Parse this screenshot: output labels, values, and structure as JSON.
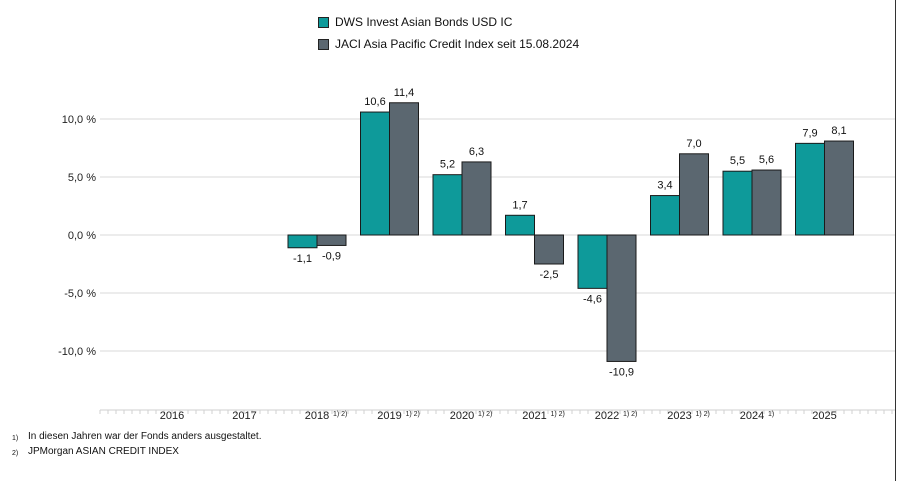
{
  "chart_data": {
    "type": "bar",
    "categories": [
      "2016",
      "2017",
      "2018",
      "2019",
      "2020",
      "2021",
      "2022",
      "2023",
      "2024",
      "2025"
    ],
    "category_superscripts": [
      "",
      "",
      "1) 2)",
      "1) 2)",
      "1) 2)",
      "1) 2)",
      "1) 2)",
      "1) 2)",
      "1)",
      ""
    ],
    "series": [
      {
        "name": "DWS Invest Asian Bonds USD IC",
        "values": [
          null,
          null,
          -1.1,
          10.6,
          5.2,
          1.7,
          -4.6,
          3.4,
          5.5,
          7.9
        ],
        "labels": [
          "",
          "",
          "-1,1",
          "10,6",
          "5,2",
          "1,7",
          "-4,6",
          "3,4",
          "5,5",
          "7,9"
        ],
        "color": "#0E9A9A"
      },
      {
        "name": "JACI Asia Pacific Credit Index seit 15.08.2024",
        "values": [
          null,
          null,
          -0.9,
          11.4,
          6.3,
          -2.5,
          -10.9,
          7.0,
          5.6,
          8.1
        ],
        "labels": [
          "",
          "",
          "-0,9",
          "11,4",
          "6,3",
          "-2,5",
          "-10,9",
          "7,0",
          "5,6",
          "8,1"
        ],
        "color": "#5B6770"
      }
    ],
    "y_ticks": [
      10,
      5,
      0,
      -5,
      -10
    ],
    "y_tick_labels": [
      "10,0 %",
      "5,0 %",
      "0,0 %",
      "-5,0 %",
      "-10,0 %"
    ],
    "ylim": [
      -13.5,
      13.5
    ],
    "grid": true,
    "legend_position": "top-center"
  },
  "legend": {
    "item1": "DWS Invest Asian Bonds USD IC",
    "item2": "JACI Asia Pacific Credit Index seit 15.08.2024"
  },
  "footnotes": [
    {
      "mark": "1)",
      "text": "In diesen Jahren war der Fonds anders ausgestaltet."
    },
    {
      "mark": "2)",
      "text": "JPMorgan ASIAN CREDIT INDEX"
    }
  ]
}
